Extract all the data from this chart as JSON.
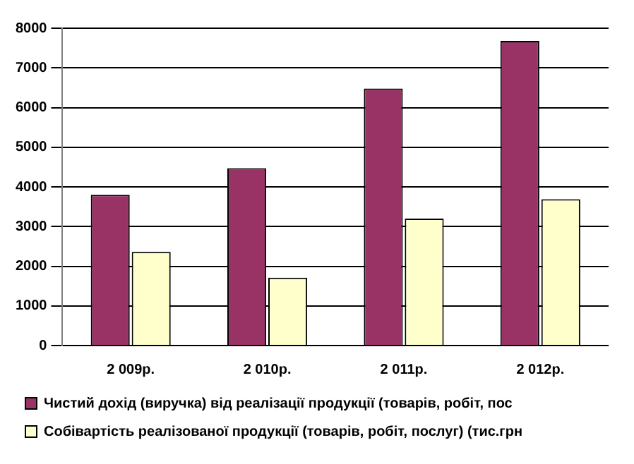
{
  "chart_data": {
    "type": "bar",
    "categories": [
      "2 009р.",
      "2 010р.",
      "2 011р.",
      "2 012р."
    ],
    "series": [
      {
        "name": "Чистий дохід (виручка) від реалізації продукції (товарів, робіт, пос",
        "color": "#993366",
        "values": [
          3800,
          4470,
          6480,
          7680
        ]
      },
      {
        "name": "Собівартість реалізованої продукції (товарів, робіт, послуг) (тис.грн",
        "color": "#ffffcc",
        "values": [
          2360,
          1710,
          3200,
          3690
        ]
      }
    ],
    "ylim": [
      0,
      8000
    ],
    "yticks": [
      0,
      1000,
      2000,
      3000,
      4000,
      5000,
      6000,
      7000,
      8000
    ],
    "grid": "y",
    "legend": "bottom"
  }
}
